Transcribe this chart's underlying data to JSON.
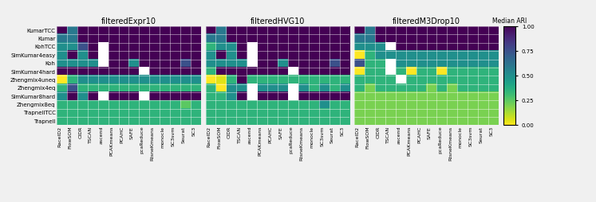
{
  "datasets": [
    "filteredExpr10",
    "filteredHVG10",
    "filteredM3Drop10"
  ],
  "row_labels": [
    "KumarTCC",
    "Kumar",
    "KohTCC",
    "SimKumar4easy",
    "Koh",
    "SimKumar4hard",
    "Zhengmix4uneq",
    "Zhengmix4eq",
    "SimKumar8hard",
    "Zhengmix8eq",
    "TrapnellTCC",
    "Trapnell"
  ],
  "col_labels": [
    "RaceID2",
    "FlowSOM",
    "CIDR",
    "TSCAN",
    "ascend",
    "PCAKmeans",
    "PCAHC",
    "SAFE",
    "pcaReduce",
    "RtsneKmeans",
    "monocle",
    "SC3svm",
    "Seurat",
    "SC3"
  ],
  "heatmap1": [
    [
      1.0,
      0.6,
      1.0,
      1.0,
      1.0,
      1.0,
      1.0,
      1.0,
      1.0,
      1.0,
      1.0,
      1.0,
      1.0,
      1.0
    ],
    [
      0.6,
      0.6,
      1.0,
      1.0,
      1.0,
      1.0,
      1.0,
      1.0,
      1.0,
      1.0,
      1.0,
      1.0,
      1.0,
      1.0
    ],
    [
      0.5,
      0.5,
      0.75,
      1.0,
      null,
      1.0,
      1.0,
      1.0,
      1.0,
      1.0,
      1.0,
      1.0,
      1.0,
      1.0
    ],
    [
      0.5,
      1.0,
      0.5,
      1.0,
      null,
      1.0,
      1.0,
      1.0,
      1.0,
      1.0,
      1.0,
      1.0,
      1.0,
      1.0
    ],
    [
      0.5,
      0.5,
      0.5,
      0.5,
      null,
      1.0,
      1.0,
      0.5,
      1.0,
      1.0,
      1.0,
      1.0,
      0.75,
      1.0
    ],
    [
      1.0,
      1.0,
      1.0,
      1.0,
      1.0,
      1.0,
      1.0,
      1.0,
      null,
      1.0,
      1.0,
      1.0,
      1.0,
      1.0
    ],
    [
      0.0,
      0.35,
      0.5,
      0.5,
      0.5,
      0.5,
      0.5,
      0.5,
      0.5,
      0.5,
      0.5,
      0.5,
      0.5,
      0.5
    ],
    [
      0.35,
      0.75,
      0.35,
      0.35,
      0.35,
      0.35,
      0.35,
      0.35,
      0.35,
      0.35,
      0.35,
      0.35,
      0.35,
      0.35
    ],
    [
      0.5,
      1.0,
      0.5,
      1.0,
      null,
      1.0,
      1.0,
      1.0,
      null,
      1.0,
      1.0,
      1.0,
      1.0,
      1.0
    ],
    [
      0.35,
      0.35,
      0.35,
      0.35,
      0.35,
      0.35,
      0.35,
      0.35,
      0.35,
      0.35,
      0.35,
      0.35,
      0.25,
      0.35
    ],
    [
      0.35,
      0.35,
      0.35,
      0.35,
      0.35,
      0.35,
      0.35,
      0.35,
      0.35,
      0.35,
      0.35,
      0.35,
      0.35,
      0.35
    ],
    [
      0.35,
      0.35,
      0.35,
      0.35,
      0.35,
      0.35,
      0.35,
      0.35,
      0.35,
      0.35,
      0.35,
      0.35,
      0.35,
      0.35
    ]
  ],
  "heatmap2": [
    [
      1.0,
      0.6,
      1.0,
      1.0,
      1.0,
      1.0,
      1.0,
      1.0,
      1.0,
      1.0,
      1.0,
      1.0,
      1.0,
      1.0
    ],
    [
      0.6,
      0.6,
      1.0,
      1.0,
      1.0,
      1.0,
      1.0,
      1.0,
      1.0,
      1.0,
      1.0,
      1.0,
      1.0,
      1.0
    ],
    [
      0.35,
      0.5,
      0.5,
      1.0,
      null,
      1.0,
      1.0,
      1.0,
      1.0,
      1.0,
      1.0,
      1.0,
      1.0,
      1.0
    ],
    [
      0.5,
      1.0,
      0.5,
      1.0,
      null,
      1.0,
      1.0,
      1.0,
      1.0,
      1.0,
      1.0,
      1.0,
      1.0,
      1.0
    ],
    [
      0.5,
      0.5,
      0.5,
      0.5,
      null,
      1.0,
      1.0,
      0.5,
      1.0,
      1.0,
      1.0,
      1.0,
      0.75,
      1.0
    ],
    [
      0.35,
      1.0,
      1.0,
      1.0,
      1.0,
      1.0,
      1.0,
      1.0,
      null,
      1.0,
      1.0,
      1.0,
      1.0,
      1.0
    ],
    [
      0.0,
      0.05,
      0.35,
      1.0,
      0.35,
      0.35,
      0.35,
      0.35,
      0.35,
      0.35,
      0.35,
      0.35,
      0.35,
      0.35
    ],
    [
      0.35,
      0.0,
      0.5,
      0.5,
      null,
      0.5,
      0.5,
      0.5,
      null,
      0.5,
      0.35,
      0.5,
      0.35,
      0.5
    ],
    [
      0.35,
      0.35,
      0.5,
      1.0,
      null,
      1.0,
      1.0,
      1.0,
      null,
      1.0,
      1.0,
      1.0,
      1.0,
      1.0
    ],
    [
      0.35,
      0.35,
      0.35,
      0.35,
      0.35,
      0.35,
      0.35,
      0.35,
      0.35,
      0.35,
      0.35,
      0.5,
      0.35,
      0.35
    ],
    [
      0.35,
      0.35,
      0.35,
      0.35,
      0.35,
      0.35,
      0.35,
      0.35,
      0.35,
      0.35,
      0.35,
      0.35,
      0.35,
      0.35
    ],
    [
      0.35,
      0.35,
      0.35,
      0.35,
      0.35,
      0.35,
      0.35,
      0.35,
      0.35,
      0.35,
      0.35,
      0.35,
      0.35,
      0.35
    ]
  ],
  "heatmap3": [
    [
      1.0,
      0.6,
      1.0,
      1.0,
      1.0,
      1.0,
      1.0,
      1.0,
      1.0,
      1.0,
      1.0,
      1.0,
      1.0,
      1.0
    ],
    [
      0.6,
      0.6,
      1.0,
      1.0,
      1.0,
      1.0,
      1.0,
      1.0,
      1.0,
      1.0,
      1.0,
      1.0,
      1.0,
      1.0
    ],
    [
      0.5,
      0.5,
      0.5,
      null,
      1.0,
      1.0,
      1.0,
      1.0,
      1.0,
      1.0,
      1.0,
      1.0,
      1.0,
      1.0
    ],
    [
      0.0,
      0.35,
      0.5,
      0.5,
      0.5,
      0.5,
      0.5,
      0.5,
      0.5,
      0.5,
      0.5,
      0.5,
      0.5,
      0.5
    ],
    [
      0.75,
      0.35,
      0.35,
      null,
      0.5,
      0.5,
      0.5,
      0.5,
      0.5,
      0.5,
      0.5,
      0.5,
      0.5,
      0.5
    ],
    [
      0.0,
      0.35,
      0.35,
      null,
      0.35,
      0.0,
      0.35,
      0.35,
      0.0,
      0.35,
      0.35,
      0.35,
      0.35,
      0.35
    ],
    [
      0.35,
      0.35,
      0.35,
      0.35,
      null,
      0.35,
      0.35,
      0.35,
      0.35,
      0.35,
      0.35,
      0.35,
      0.35,
      0.35
    ],
    [
      0.35,
      0.2,
      0.35,
      0.35,
      0.35,
      0.35,
      0.35,
      0.2,
      0.35,
      0.2,
      0.35,
      0.35,
      0.35,
      0.35
    ],
    [
      0.2,
      0.2,
      0.2,
      0.2,
      0.2,
      0.2,
      0.2,
      0.2,
      0.2,
      0.2,
      0.2,
      0.2,
      0.2,
      0.2
    ],
    [
      0.2,
      0.2,
      0.2,
      0.2,
      0.2,
      0.2,
      0.2,
      0.2,
      0.2,
      0.2,
      0.2,
      0.2,
      0.2,
      0.2
    ],
    [
      0.2,
      0.2,
      0.2,
      0.2,
      0.2,
      0.2,
      0.2,
      0.2,
      0.2,
      0.2,
      0.2,
      0.2,
      0.2,
      0.2
    ],
    [
      0.2,
      0.2,
      0.2,
      0.2,
      0.2,
      0.2,
      0.2,
      0.2,
      0.2,
      0.2,
      0.2,
      0.2,
      0.2,
      0.2
    ]
  ],
  "vmin": 0.0,
  "vmax": 1.0,
  "fig_bg": "#f0f0f0"
}
